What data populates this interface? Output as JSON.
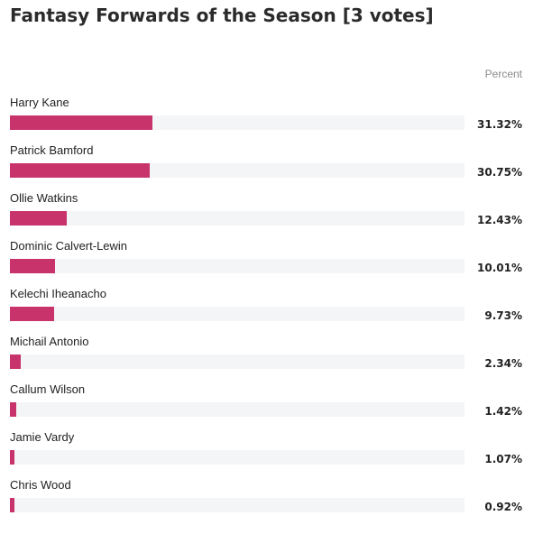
{
  "title": "Fantasy Forwards of the Season [3 votes]",
  "column_header": "Percent",
  "colors": {
    "bar": "#c8336b",
    "track": "#f4f5f6"
  },
  "chart_data": {
    "type": "bar",
    "orientation": "horizontal",
    "title": "Fantasy Forwards of the Season [3 votes]",
    "value_header": "Percent",
    "categories": [
      "Harry Kane",
      "Patrick Bamford",
      "Ollie Watkins",
      "Dominic Calvert-Lewin",
      "Kelechi Iheanacho",
      "Michail Antonio",
      "Callum Wilson",
      "Jamie Vardy",
      "Chris Wood"
    ],
    "values": [
      31.32,
      30.75,
      12.43,
      10.01,
      9.73,
      2.34,
      1.42,
      1.07,
      0.92
    ],
    "value_labels": [
      "31.32%",
      "30.75%",
      "12.43%",
      "10.01%",
      "9.73%",
      "2.34%",
      "1.42%",
      "1.07%",
      "0.92%"
    ],
    "xlim": [
      0,
      100
    ]
  }
}
